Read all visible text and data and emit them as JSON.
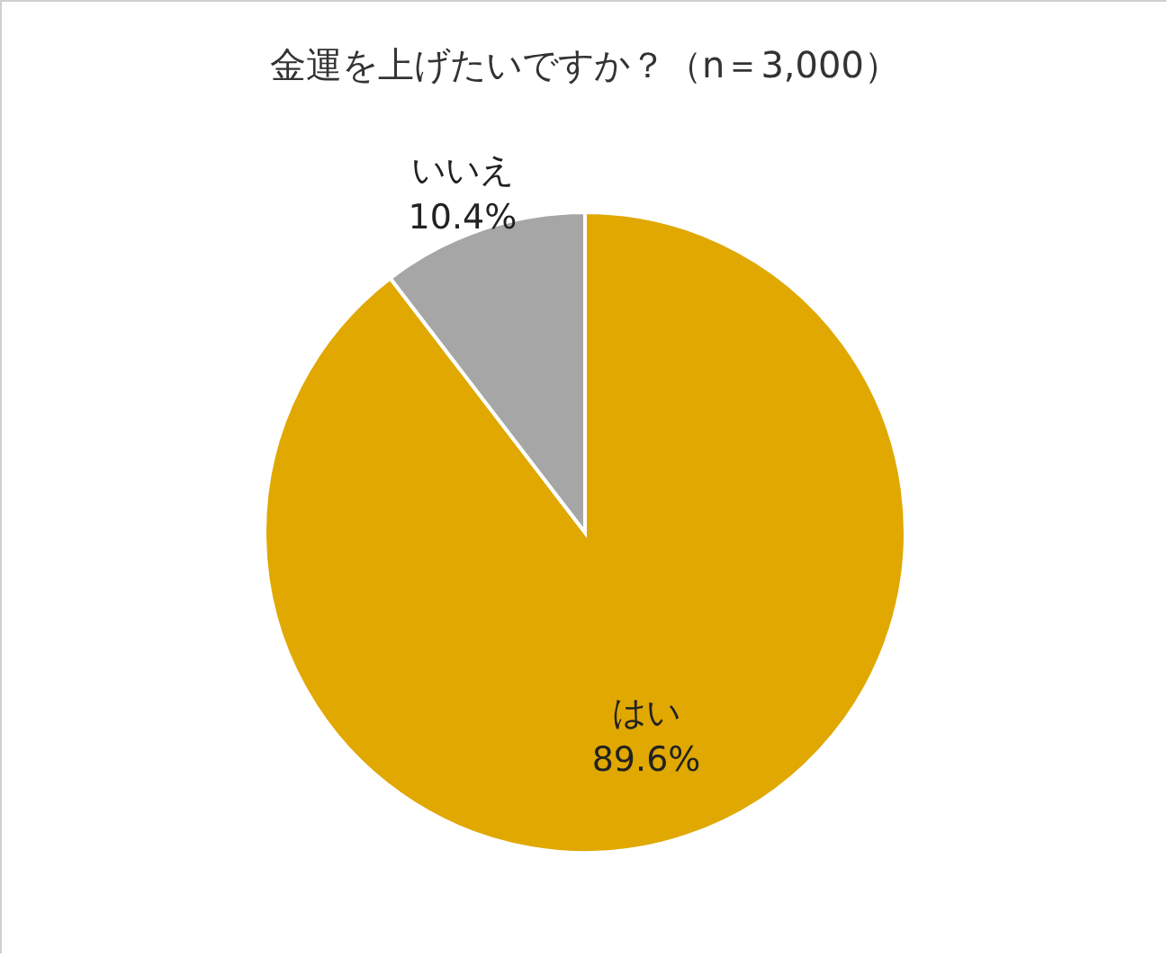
{
  "chart_data": {
    "type": "pie",
    "title": "金運を上げたいですか？（n＝3,000）",
    "categories": [
      "はい",
      "いいえ"
    ],
    "values": [
      89.6,
      10.4
    ],
    "colors": [
      "#e0a800",
      "#a6a6a6"
    ],
    "value_labels": [
      "89.6%",
      "10.4%"
    ]
  }
}
